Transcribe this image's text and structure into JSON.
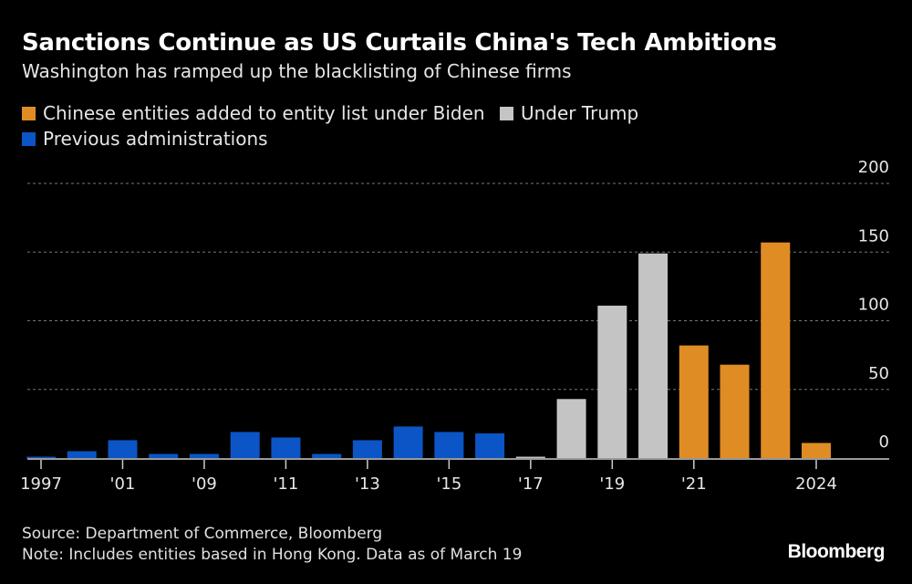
{
  "header": {
    "title": "Sanctions Continue as US Curtails China's Tech Ambitions",
    "subtitle": "Washington has ramped up the blacklisting of Chinese firms"
  },
  "legend": [
    {
      "label": "Chinese entities added to entity list under Biden",
      "color": "#e08c25"
    },
    {
      "label": "Under Trump",
      "color": "#c4c4c4"
    },
    {
      "label": "Previous administrations",
      "color": "#0b55c6"
    }
  ],
  "chart_data": {
    "type": "bar",
    "title": "Sanctions Continue as US Curtails China's Tech Ambitions",
    "subtitle": "Washington has ramped up the blacklisting of Chinese firms",
    "categories": [
      "1997",
      "",
      "'01",
      "",
      "'09",
      "",
      "'11",
      "",
      "'13",
      "",
      "'15",
      "",
      "'17",
      "",
      "'19",
      "",
      "'21",
      "",
      "",
      "2024"
    ],
    "values": [
      1,
      5,
      13,
      3,
      3,
      19,
      15,
      3,
      13,
      23,
      19,
      18,
      1,
      43,
      111,
      149,
      82,
      68,
      157,
      11
    ],
    "series_group": [
      "Previous administrations",
      "Previous administrations",
      "Previous administrations",
      "Previous administrations",
      "Previous administrations",
      "Previous administrations",
      "Previous administrations",
      "Previous administrations",
      "Previous administrations",
      "Previous administrations",
      "Previous administrations",
      "Previous administrations",
      "Under Trump",
      "Under Trump",
      "Under Trump",
      "Under Trump",
      "Chinese entities added to entity list under Biden",
      "Chinese entities added to entity list under Biden",
      "Chinese entities added to entity list under Biden",
      "Chinese entities added to entity list under Biden"
    ],
    "colors": {
      "Previous administrations": "#0b55c6",
      "Under Trump": "#c4c4c4",
      "Chinese entities added to entity list under Biden": "#e08c25"
    },
    "yticks": [
      0,
      50,
      100,
      150,
      200
    ],
    "ylim": [
      0,
      200
    ],
    "xlabel": "",
    "ylabel": "",
    "grid": true,
    "yaxis_side": "right",
    "legend_position": "top-left"
  },
  "footer": {
    "source": "Source: Department of Commerce, Bloomberg",
    "note": "Note: Includes entities based in Hong Kong. Data as of March 19",
    "logo": "Bloomberg"
  }
}
